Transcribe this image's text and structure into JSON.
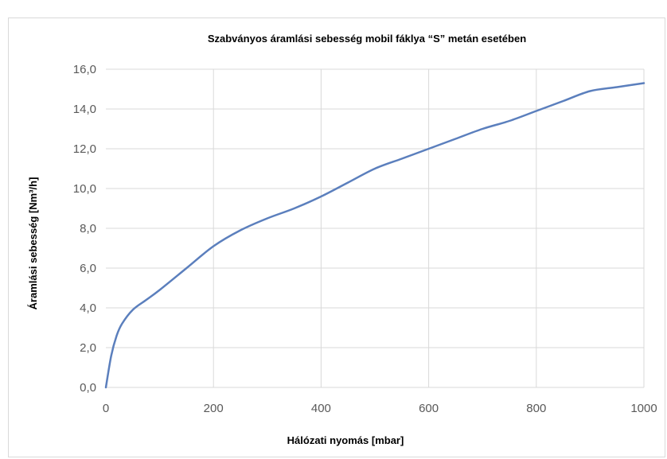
{
  "chart_data": {
    "type": "line",
    "title": "Szabványos áramlási sebesség mobil fáklya “S” metán esetében",
    "xlabel": "Hálózati nyomás [mbar]",
    "ylabel": "Áramlási sebesség [Nm³/h]",
    "xlim": [
      0,
      1000
    ],
    "ylim": [
      0,
      16
    ],
    "x_ticks": [
      0,
      200,
      400,
      600,
      800,
      1000
    ],
    "y_ticks": [
      0,
      2,
      4,
      6,
      8,
      10,
      12,
      14,
      16
    ],
    "x_tick_labels": [
      "0",
      "200",
      "400",
      "600",
      "800",
      "1000"
    ],
    "y_tick_labels": [
      "0,0",
      "2,0",
      "4,0",
      "6,0",
      "8,0",
      "10,0",
      "12,0",
      "14,0",
      "16,0"
    ],
    "grid": true,
    "legend": "none",
    "series_color": "#5b7fbd",
    "series": [
      {
        "x": [
          0,
          10,
          20,
          30,
          50,
          75,
          100,
          150,
          200,
          250,
          300,
          350,
          400,
          450,
          500,
          550,
          600,
          650,
          700,
          750,
          800,
          850,
          900,
          950,
          1000
        ],
        "y": [
          0.0,
          1.6,
          2.6,
          3.2,
          3.9,
          4.4,
          4.9,
          6.0,
          7.1,
          7.9,
          8.5,
          9.0,
          9.6,
          10.3,
          11.0,
          11.5,
          12.0,
          12.5,
          13.0,
          13.4,
          13.9,
          14.4,
          14.9,
          15.1,
          15.3
        ]
      }
    ]
  }
}
